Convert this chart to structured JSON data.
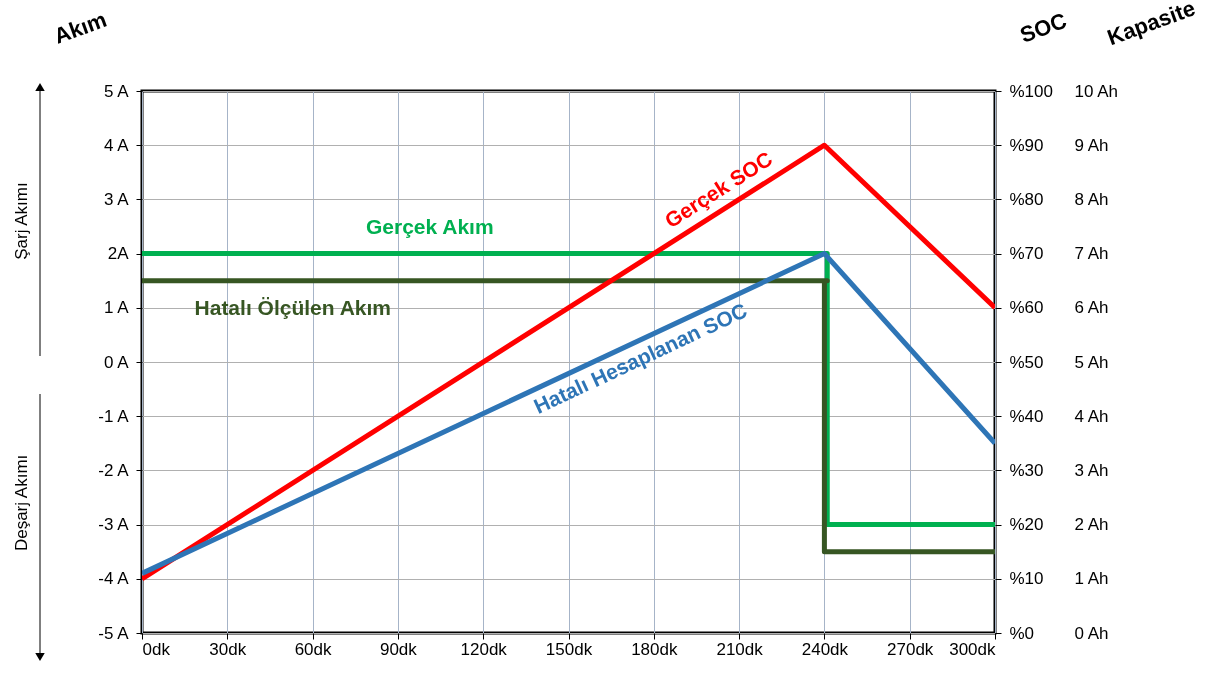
{
  "chart_data": {
    "type": "line",
    "ylabel": "Akım",
    "y2label": "SOC",
    "y3label": "Kapasite",
    "xlim": [
      0,
      300
    ],
    "xticks": [
      {
        "value": 0,
        "label": "0dk"
      },
      {
        "value": 30,
        "label": "30dk"
      },
      {
        "value": 60,
        "label": "60dk"
      },
      {
        "value": 90,
        "label": "90dk"
      },
      {
        "value": 120,
        "label": "120dk"
      },
      {
        "value": 150,
        "label": "150dk"
      },
      {
        "value": 180,
        "label": "180dk"
      },
      {
        "value": 210,
        "label": "210dk"
      },
      {
        "value": 240,
        "label": "240dk"
      },
      {
        "value": 270,
        "label": "270dk"
      },
      {
        "value": 300,
        "label": "300dk"
      }
    ],
    "ylim": [
      -5,
      5
    ],
    "yticks": [
      {
        "value": -5,
        "label": "-5 A"
      },
      {
        "value": -4,
        "label": "-4 A"
      },
      {
        "value": -3,
        "label": "-3 A"
      },
      {
        "value": -2,
        "label": "-2 A"
      },
      {
        "value": -1,
        "label": "-1 A"
      },
      {
        "value": 0,
        "label": "0 A"
      },
      {
        "value": 1,
        "label": "1 A"
      },
      {
        "value": 2,
        "label": "2A"
      },
      {
        "value": 3,
        "label": "3 A"
      },
      {
        "value": 4,
        "label": "4 A"
      },
      {
        "value": 5,
        "label": "5 A"
      }
    ],
    "y2lim": [
      0,
      100
    ],
    "y2ticks": [
      {
        "value": 0,
        "label": "%0"
      },
      {
        "value": 10,
        "label": "%10"
      },
      {
        "value": 20,
        "label": "%20"
      },
      {
        "value": 30,
        "label": "%30"
      },
      {
        "value": 40,
        "label": "%40"
      },
      {
        "value": 50,
        "label": "%50"
      },
      {
        "value": 60,
        "label": "%60"
      },
      {
        "value": 70,
        "label": "%70"
      },
      {
        "value": 80,
        "label": "%80"
      },
      {
        "value": 90,
        "label": "%90"
      },
      {
        "value": 100,
        "label": "%100"
      }
    ],
    "y3lim": [
      0,
      10
    ],
    "y3ticks": [
      {
        "value": 0,
        "label": "0 Ah"
      },
      {
        "value": 1,
        "label": "1 Ah"
      },
      {
        "value": 2,
        "label": "2 Ah"
      },
      {
        "value": 3,
        "label": "3 Ah"
      },
      {
        "value": 4,
        "label": "4 Ah"
      },
      {
        "value": 5,
        "label": "5 Ah"
      },
      {
        "value": 6,
        "label": "6 Ah"
      },
      {
        "value": 7,
        "label": "7 Ah"
      },
      {
        "value": 8,
        "label": "8 Ah"
      },
      {
        "value": 9,
        "label": "9 Ah"
      },
      {
        "value": 10,
        "label": "10 Ah"
      }
    ],
    "grid": true,
    "legend": false,
    "marker": "none",
    "line_style": "solid",
    "annotations": [
      "Şarj Akımı",
      "Deşarj Akımı"
    ],
    "series": [
      {
        "name": "Gerçek Akım",
        "color": "#00b050",
        "x": [
          0,
          241,
          241,
          300
        ],
        "values": [
          2,
          2,
          -3,
          -3
        ]
      },
      {
        "name": "Hatalı Ölçülen Akım",
        "color": "#375623",
        "x": [
          0,
          241,
          240,
          240,
          300
        ],
        "values": [
          1.5,
          1.5,
          1.5,
          -3.5,
          -3.5
        ]
      },
      {
        "name": "Gerçek SOC",
        "color": "#ff0000",
        "axis": "y2",
        "x": [
          0,
          240,
          300
        ],
        "values": [
          10,
          90,
          60
        ]
      },
      {
        "name": "Hatalı Hesaplanan SOC",
        "color": "#2e75b6",
        "axis": "y2",
        "x": [
          0,
          240,
          300
        ],
        "values": [
          11,
          70,
          35
        ]
      }
    ]
  }
}
